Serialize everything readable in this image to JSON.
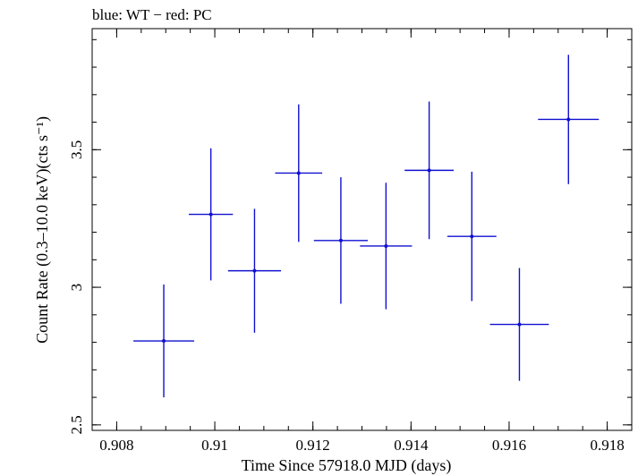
{
  "chart_data": {
    "type": "scatter",
    "title": "blue: WT − red: PC",
    "xlabel": "Time Since 57918.0 MJD (days)",
    "ylabel": "Count Rate (0.3–10.0 keV)(cts s⁻¹)",
    "xlim": [
      0.9075,
      0.9185
    ],
    "ylim": [
      2.48,
      3.94
    ],
    "xticks": [
      {
        "value": 0.908,
        "label": "0.908"
      },
      {
        "value": 0.91,
        "label": "0.91"
      },
      {
        "value": 0.912,
        "label": "0.912"
      },
      {
        "value": 0.914,
        "label": "0.914"
      },
      {
        "value": 0.916,
        "label": "0.916"
      },
      {
        "value": 0.918,
        "label": "0.918"
      }
    ],
    "yticks": [
      {
        "value": 2.5,
        "label": "2.5"
      },
      {
        "value": 3,
        "label": "3"
      },
      {
        "value": 3.5,
        "label": "3.5"
      }
    ],
    "x_minor_step": 0.0005,
    "y_minor_step": 0.1,
    "grid": false,
    "series": [
      {
        "color": "#1010d0",
        "points": [
          {
            "x": 0.90896,
            "xerr": 0.00062,
            "y": 2.805,
            "yerr": 0.205
          },
          {
            "x": 0.90992,
            "xerr": 0.00045,
            "y": 3.265,
            "yerr": 0.24
          },
          {
            "x": 0.91081,
            "xerr": 0.00054,
            "y": 3.06,
            "yerr": 0.225
          },
          {
            "x": 0.91171,
            "xerr": 0.00048,
            "y": 3.415,
            "yerr": 0.25
          },
          {
            "x": 0.91257,
            "xerr": 0.00055,
            "y": 3.17,
            "yerr": 0.23
          },
          {
            "x": 0.91349,
            "xerr": 0.00053,
            "y": 3.15,
            "yerr": 0.23
          },
          {
            "x": 0.91437,
            "xerr": 0.0005,
            "y": 3.425,
            "yerr": 0.25
          },
          {
            "x": 0.91524,
            "xerr": 0.0005,
            "y": 3.185,
            "yerr": 0.235
          },
          {
            "x": 0.91621,
            "xerr": 0.0006,
            "y": 2.865,
            "yerr": 0.205
          },
          {
            "x": 0.91721,
            "xerr": 0.00062,
            "y": 3.61,
            "yerr": 0.235
          }
        ]
      }
    ]
  }
}
